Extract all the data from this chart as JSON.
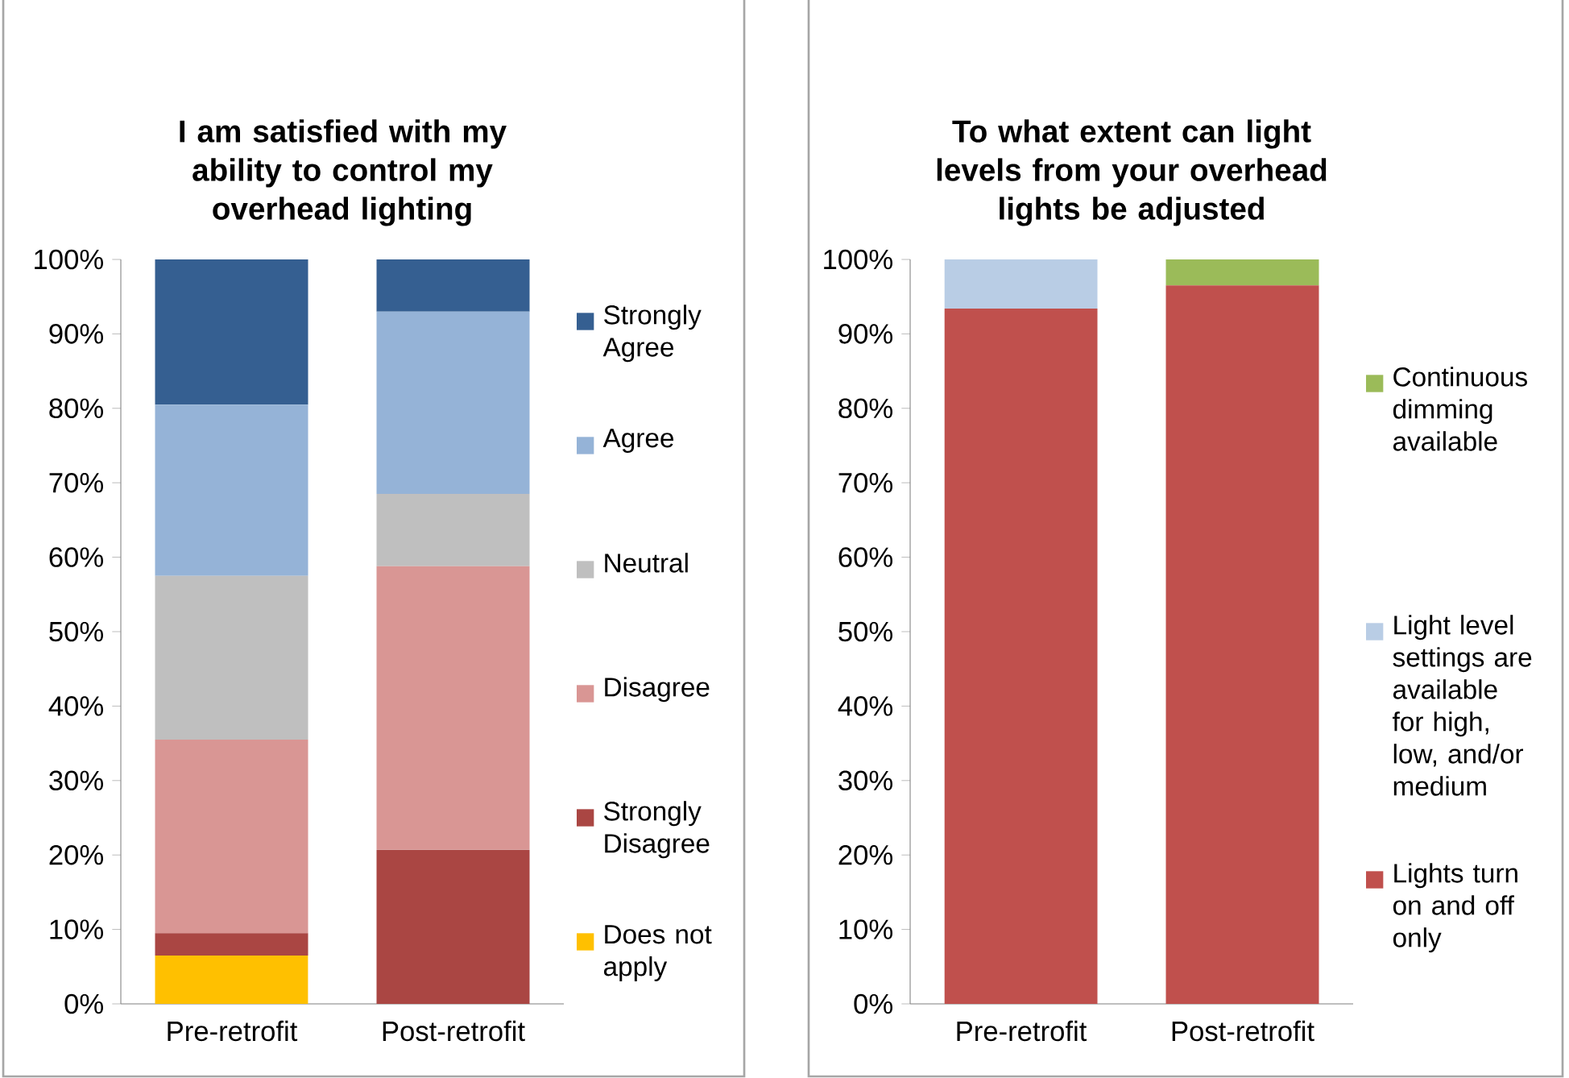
{
  "chart_data": [
    {
      "type": "bar",
      "title": "I am satisfied with my ability to control my overhead lighting",
      "stacked": true,
      "legend": "right",
      "categories": [
        "Pre-retrofit",
        "Post-retrofit"
      ],
      "ylim": [
        0,
        100
      ],
      "yticks": [
        {
          "value": 0,
          "label": "0%"
        },
        {
          "value": 10,
          "label": "10%"
        },
        {
          "value": 20,
          "label": "20%"
        },
        {
          "value": 30,
          "label": "30%"
        },
        {
          "value": 40,
          "label": "40%"
        },
        {
          "value": 50,
          "label": "50%"
        },
        {
          "value": 60,
          "label": "60%"
        },
        {
          "value": 70,
          "label": "70%"
        },
        {
          "value": 80,
          "label": "80%"
        },
        {
          "value": 90,
          "label": "90%"
        },
        {
          "value": 100,
          "label": "100%"
        }
      ],
      "series": [
        {
          "name": "Does not apply",
          "color": "#ffc000",
          "values": [
            6.5,
            0
          ]
        },
        {
          "name": "Strongly Disagree",
          "color": "#aa4643",
          "values": [
            3,
            20.7
          ]
        },
        {
          "name": "Disagree",
          "color": "#d99694",
          "values": [
            26,
            38.1
          ]
        },
        {
          "name": "Neutral",
          "color": "#bfbfbf",
          "values": [
            22,
            9.7
          ]
        },
        {
          "name": "Agree",
          "color": "#95b3d7",
          "values": [
            23,
            24.5
          ]
        },
        {
          "name": "Strongly Agree",
          "color": "#355f91",
          "values": [
            19.5,
            7
          ]
        }
      ]
    },
    {
      "type": "bar",
      "title": "To what extent can light levels from your overhead lights be adjusted",
      "stacked": true,
      "legend": "right",
      "categories": [
        "Pre-retrofit",
        "Post-retrofit"
      ],
      "ylim": [
        0,
        100
      ],
      "yticks": [
        {
          "value": 0,
          "label": "0%"
        },
        {
          "value": 10,
          "label": "10%"
        },
        {
          "value": 20,
          "label": "20%"
        },
        {
          "value": 30,
          "label": "30%"
        },
        {
          "value": 40,
          "label": "40%"
        },
        {
          "value": 50,
          "label": "50%"
        },
        {
          "value": 60,
          "label": "60%"
        },
        {
          "value": 70,
          "label": "70%"
        },
        {
          "value": 80,
          "label": "80%"
        },
        {
          "value": 90,
          "label": "90%"
        },
        {
          "value": 100,
          "label": "100%"
        }
      ],
      "series": [
        {
          "name": "Lights turn on and off only",
          "color": "#c0504d",
          "values": [
            93.4,
            96.5
          ]
        },
        {
          "name": "Light level settings are available for high, low, and/or medium",
          "color": "#b9cde5",
          "values": [
            6.6,
            0
          ]
        },
        {
          "name": "Continuous dimming available",
          "color": "#9bbb59",
          "values": [
            0,
            3.5
          ]
        }
      ]
    }
  ]
}
